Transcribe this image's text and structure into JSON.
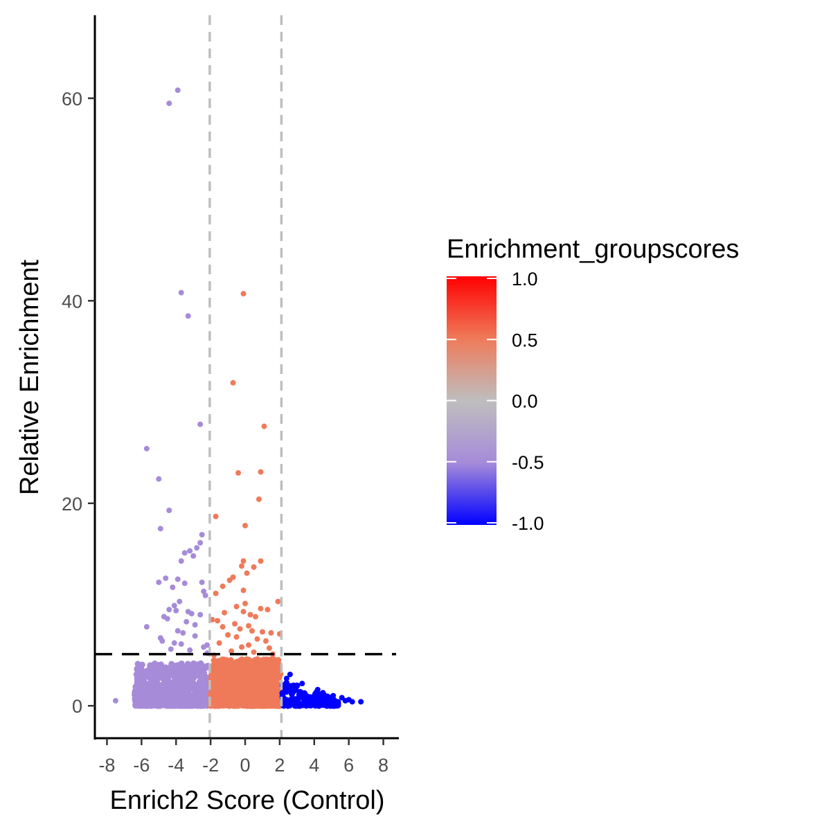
{
  "chart_data": {
    "type": "scatter",
    "xlabel": "Enrich2 Score (Control)",
    "ylabel": "Relative Enrichment",
    "xlim": [
      -8.7,
      8.9
    ],
    "ylim": [
      -3.2,
      68.2
    ],
    "x_ticks": [
      -8,
      -6,
      -4,
      -2,
      0,
      2,
      4,
      6,
      8
    ],
    "x_tick_labels": [
      "-8",
      "-6",
      "-4",
      "-2",
      "0",
      "2",
      "4",
      "6",
      "8"
    ],
    "y_ticks": [
      0,
      20,
      40,
      60
    ],
    "y_tick_labels": [
      "0",
      "20",
      "40",
      "60"
    ],
    "grid": false,
    "reference_lines": {
      "vertical": [
        -2.05,
        2.1
      ],
      "horizontal": [
        5.1
      ],
      "vertical_style": "dashed-gray",
      "horizontal_style": "dashed-black"
    },
    "legend": {
      "title": "Enrichment_groupscores",
      "placement": "right",
      "type": "colorbar",
      "breaks": [
        1.0,
        0.5,
        0.0,
        -0.5,
        -1.0
      ],
      "labels": [
        "1.0",
        "0.5",
        "0.0",
        "-0.5",
        "-1.0"
      ],
      "colors": {
        "high": "#ff0000",
        "mid": "#bebebe",
        "low": "#0000ff"
      }
    },
    "groups": [
      {
        "score": -0.5,
        "color": "#a68bd9",
        "x_range": [
          -6.4,
          -2.05
        ]
      },
      {
        "score": 0.5,
        "color": "#ef7a5a",
        "x_range": [
          -2.05,
          2.1
        ]
      },
      {
        "score": -1.0,
        "color": "#0000ff",
        "x_range": [
          2.1,
          6.8
        ]
      }
    ],
    "points": [
      [
        -3.9,
        60.8,
        -0.5
      ],
      [
        -4.4,
        59.5,
        -0.5
      ],
      [
        -3.7,
        40.8,
        -0.5
      ],
      [
        -3.3,
        38.5,
        -0.5
      ],
      [
        -2.6,
        27.8,
        -0.5
      ],
      [
        -5.7,
        25.4,
        -0.5
      ],
      [
        -5.0,
        22.4,
        -0.5
      ],
      [
        -4.4,
        19.3,
        -0.5
      ],
      [
        -4.9,
        17.5,
        -0.5
      ],
      [
        -2.5,
        16.9,
        -0.5
      ],
      [
        -2.6,
        16.1,
        -0.5
      ],
      [
        -2.8,
        15.6,
        -0.5
      ],
      [
        -3.2,
        15.3,
        -0.5
      ],
      [
        -3.5,
        15.1,
        -0.5
      ],
      [
        -3.0,
        14.8,
        -0.5
      ],
      [
        -3.7,
        14.3,
        -0.5
      ],
      [
        -4.6,
        12.6,
        -0.5
      ],
      [
        -3.9,
        12.5,
        -0.5
      ],
      [
        -5.0,
        12.2,
        -0.5
      ],
      [
        -3.5,
        12.1,
        -0.5
      ],
      [
        -2.5,
        12.2,
        -0.5
      ],
      [
        -4.2,
        11.7,
        -0.5
      ],
      [
        -2.4,
        11.3,
        -0.5
      ],
      [
        -3.8,
        10.3,
        -0.5
      ],
      [
        -2.3,
        10.9,
        -0.5
      ],
      [
        -4.1,
        9.9,
        -0.5
      ],
      [
        -4.4,
        9.5,
        -0.5
      ],
      [
        -4.0,
        9.4,
        -0.5
      ],
      [
        -3.3,
        9.3,
        -0.5
      ],
      [
        -3.1,
        9.1,
        -0.5
      ],
      [
        -2.6,
        9.0,
        -0.5
      ],
      [
        -4.7,
        8.8,
        -0.5
      ],
      [
        -4.5,
        8.6,
        -0.5
      ],
      [
        -3.4,
        8.3,
        -0.5
      ],
      [
        -2.9,
        8.0,
        -0.5
      ],
      [
        -5.7,
        7.8,
        -0.5
      ],
      [
        -3.9,
        7.4,
        -0.5
      ],
      [
        -3.6,
        7.2,
        -0.5
      ],
      [
        -2.9,
        6.9,
        -0.5
      ],
      [
        -4.9,
        6.7,
        -0.5
      ],
      [
        -4.8,
        6.4,
        -0.5
      ],
      [
        -4.1,
        6.2,
        -0.5
      ],
      [
        -3.7,
        6.1,
        -0.5
      ],
      [
        -2.2,
        6.0,
        -0.5
      ],
      [
        -2.4,
        5.8,
        -0.5
      ],
      [
        -4.3,
        5.6,
        -0.5
      ],
      [
        -3.2,
        5.5,
        -0.5
      ],
      [
        -2.2,
        5.2,
        -0.5
      ],
      [
        -7.5,
        0.5,
        -0.5
      ],
      [
        -0.1,
        40.7,
        0.5
      ],
      [
        -0.7,
        31.9,
        0.5
      ],
      [
        1.1,
        27.6,
        0.5
      ],
      [
        -0.4,
        23.0,
        0.5
      ],
      [
        0.9,
        23.1,
        0.5
      ],
      [
        0.8,
        20.4,
        0.5
      ],
      [
        -1.7,
        18.7,
        0.5
      ],
      [
        -0.0,
        17.8,
        0.5
      ],
      [
        -0.1,
        14.3,
        0.5
      ],
      [
        0.9,
        14.3,
        0.5
      ],
      [
        -0.2,
        13.8,
        0.5
      ],
      [
        0.5,
        13.7,
        0.5
      ],
      [
        0.1,
        13.1,
        0.5
      ],
      [
        -0.7,
        12.7,
        0.5
      ],
      [
        -0.9,
        12.4,
        0.5
      ],
      [
        -1.3,
        11.8,
        0.5
      ],
      [
        -0.1,
        11.4,
        0.5
      ],
      [
        -1.7,
        11.1,
        0.5
      ],
      [
        1.9,
        10.3,
        0.5
      ],
      [
        0.0,
        10.1,
        0.5
      ],
      [
        -0.5,
        9.8,
        0.5
      ],
      [
        0.9,
        9.6,
        0.5
      ],
      [
        1.3,
        9.5,
        0.5
      ],
      [
        -0.1,
        9.3,
        0.5
      ],
      [
        -1.2,
        9.2,
        0.5
      ],
      [
        0.3,
        9.0,
        0.5
      ],
      [
        0.6,
        8.8,
        0.5
      ],
      [
        -1.9,
        8.5,
        0.5
      ],
      [
        -1.6,
        8.4,
        0.5
      ],
      [
        -0.6,
        8.1,
        0.5
      ],
      [
        0.2,
        7.9,
        0.5
      ],
      [
        -1.3,
        7.8,
        0.5
      ],
      [
        -0.3,
        7.6,
        0.5
      ],
      [
        0.4,
        7.4,
        0.5
      ],
      [
        1.0,
        7.3,
        0.5
      ],
      [
        1.5,
        7.2,
        0.5
      ],
      [
        -1.0,
        7.0,
        0.5
      ],
      [
        -0.5,
        6.8,
        0.5
      ],
      [
        0.7,
        6.6,
        0.5
      ],
      [
        2.0,
        7.1,
        0.5
      ],
      [
        1.2,
        6.4,
        0.5
      ],
      [
        -1.5,
        6.2,
        0.5
      ],
      [
        0.2,
        6.0,
        0.5
      ],
      [
        -0.2,
        5.8,
        0.5
      ],
      [
        1.4,
        5.7,
        0.5
      ],
      [
        -0.8,
        5.4,
        0.5
      ],
      [
        0.5,
        5.3,
        0.5
      ],
      [
        1.6,
        5.1,
        0.5
      ],
      [
        -1.8,
        5.0,
        0.5
      ],
      [
        2.6,
        3.1,
        -1.0
      ],
      [
        2.4,
        2.7,
        -1.0
      ],
      [
        3.3,
        2.2,
        -1.0
      ],
      [
        4.2,
        1.6,
        -1.0
      ],
      [
        4.5,
        1.3,
        -1.0
      ],
      [
        5.1,
        1.0,
        -1.0
      ],
      [
        5.6,
        0.8,
        -1.0
      ],
      [
        6.0,
        0.6,
        -1.0
      ],
      [
        5.8,
        0.5,
        -1.0
      ],
      [
        6.2,
        0.4,
        -1.0
      ],
      [
        6.7,
        0.4,
        -1.0
      ]
    ],
    "dense_regions": [
      {
        "score": -0.5,
        "x_range": [
          -6.4,
          -2.1
        ],
        "y_range": [
          0.0,
          4.2
        ],
        "count": 700
      },
      {
        "score": 0.5,
        "x_range": [
          -2.0,
          2.05
        ],
        "y_range": [
          0.0,
          4.6
        ],
        "count": 1200
      },
      {
        "score": -1.0,
        "x_range": [
          2.15,
          5.4
        ],
        "y_range": [
          0.0,
          2.5
        ],
        "count": 160
      }
    ]
  }
}
